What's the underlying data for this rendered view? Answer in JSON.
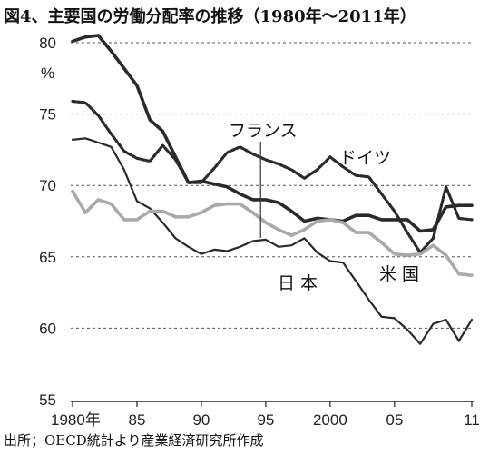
{
  "title": "図4、主要国の労働分配率の推移（1980年～2011年）",
  "source": "出所；OECD統計より産業経済研究所作成",
  "chart_data": {
    "type": "line",
    "ylabel": "%",
    "ylim": [
      55,
      80
    ],
    "yticks": [
      "55",
      "60",
      "65",
      "70",
      "75",
      "80"
    ],
    "xlim": [
      1980,
      2011
    ],
    "xticks": [
      {
        "x": 1980,
        "label": "1980年"
      },
      {
        "x": 1985,
        "label": "85"
      },
      {
        "x": 1990,
        "label": "90"
      },
      {
        "x": 1995,
        "label": "95"
      },
      {
        "x": 2000,
        "label": "2000"
      },
      {
        "x": 2005,
        "label": "05"
      },
      {
        "x": 2011,
        "label": "11"
      }
    ],
    "grid": "horizontal dashed",
    "x": [
      1980,
      1981,
      1982,
      1983,
      1984,
      1985,
      1986,
      1987,
      1988,
      1989,
      1990,
      1991,
      1992,
      1993,
      1994,
      1995,
      1996,
      1997,
      1998,
      1999,
      2000,
      2001,
      2002,
      2003,
      2004,
      2005,
      2006,
      2007,
      2008,
      2009,
      2010,
      2011
    ],
    "series": [
      {
        "name": "日本",
        "color": "#2a2a2a",
        "style": "solid-thick",
        "values": [
          80.1,
          80.4,
          80.5,
          79.4,
          78.2,
          77.0,
          74.6,
          73.8,
          72.0,
          70.2,
          70.3,
          70.1,
          69.9,
          69.4,
          69.0,
          69.0,
          68.8,
          68.2,
          67.5,
          67.7,
          67.6,
          67.5,
          67.9,
          67.9,
          67.6,
          67.6,
          67.6,
          66.8,
          66.9,
          68.5,
          68.6,
          68.6
        ]
      },
      {
        "name": "フランス",
        "color": "#2a2a2a",
        "style": "solid-medium",
        "values": [
          73.2,
          73.3,
          73.0,
          72.7,
          71.1,
          68.9,
          68.4,
          67.4,
          66.3,
          65.7,
          65.2,
          65.5,
          65.4,
          65.7,
          66.1,
          66.2,
          65.7,
          65.8,
          66.3,
          65.3,
          64.7,
          64.6,
          63.3,
          62.0,
          60.8,
          60.7,
          59.9,
          58.9,
          60.3,
          60.6,
          59.1,
          60.6
        ]
      },
      {
        "name": "ドイツ",
        "color": "#2a2a2a",
        "style": "dotted",
        "values": [
          75.9,
          75.8,
          74.9,
          73.6,
          72.4,
          71.9,
          71.7,
          72.8,
          71.8,
          70.2,
          70.2,
          71.2,
          72.3,
          72.7,
          72.2,
          71.8,
          71.5,
          71.1,
          70.5,
          71.1,
          72.0,
          71.3,
          70.7,
          70.6,
          69.4,
          68.2,
          66.7,
          65.3,
          66.3,
          69.9,
          67.7,
          67.6
        ]
      },
      {
        "name": "米国",
        "color": "#a9a9a9",
        "style": "solid-thick",
        "values": [
          69.6,
          68.1,
          69.0,
          68.7,
          67.6,
          67.6,
          68.2,
          68.2,
          67.8,
          67.8,
          68.1,
          68.6,
          68.7,
          68.7,
          68.1,
          67.4,
          66.9,
          66.5,
          66.9,
          67.5,
          67.6,
          67.4,
          66.7,
          66.7,
          66.0,
          65.2,
          65.1,
          65.2,
          65.8,
          65.1,
          63.8,
          63.7
        ]
      }
    ],
    "annotations": [
      {
        "text": "フランス",
        "target": "フランス",
        "leader_to_x": 1994.6
      },
      {
        "text": "ドイツ",
        "target": "ドイツ"
      },
      {
        "text": "日 本",
        "target": "日本"
      },
      {
        "text": "米 国",
        "target": "米国"
      }
    ]
  }
}
